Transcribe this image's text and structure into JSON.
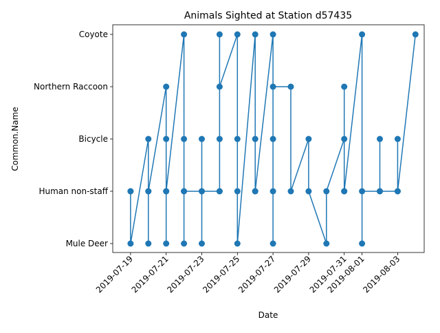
{
  "chart_data": {
    "type": "line",
    "title": "Animals Sighted at Station d57435",
    "xlabel": "Date",
    "ylabel": "Common.Name",
    "categories": [
      "Mule Deer",
      "Human non-staff",
      "Bicycle",
      "Northern Raccoon",
      "Coyote"
    ],
    "x_ticks": [
      "2019-07-19",
      "2019-07-21",
      "2019-07-23",
      "2019-07-25",
      "2019-07-27",
      "2019-07-29",
      "2019-07-31",
      "2019-08-01",
      "2019-08-03"
    ],
    "xlim": [
      "2019-07-18",
      "2019-08-05"
    ],
    "color": "#1f77b4",
    "grid": false,
    "series": [
      {
        "points": [
          [
            "2019-07-19",
            "Human non-staff"
          ],
          [
            "2019-07-19",
            "Human non-staff"
          ],
          [
            "2019-07-19",
            "Mule Deer"
          ],
          [
            "2019-07-20",
            "Bicycle"
          ],
          [
            "2019-07-20",
            "Human non-staff"
          ],
          [
            "2019-07-20",
            "Mule Deer"
          ],
          [
            "2019-07-20",
            "Human non-staff"
          ],
          [
            "2019-07-21",
            "Northern Raccoon"
          ],
          [
            "2019-07-21",
            "Mule Deer"
          ],
          [
            "2019-07-21",
            "Human non-staff"
          ],
          [
            "2019-07-21",
            "Bicycle"
          ],
          [
            "2019-07-21",
            "Human non-staff"
          ],
          [
            "2019-07-22",
            "Coyote"
          ],
          [
            "2019-07-22",
            "Mule Deer"
          ],
          [
            "2019-07-22",
            "Human non-staff"
          ],
          [
            "2019-07-22",
            "Bicycle"
          ],
          [
            "2019-07-22",
            "Human non-staff"
          ],
          [
            "2019-07-23",
            "Human non-staff"
          ],
          [
            "2019-07-23",
            "Mule Deer"
          ],
          [
            "2019-07-23",
            "Bicycle"
          ],
          [
            "2019-07-23",
            "Human non-staff"
          ],
          [
            "2019-07-24",
            "Human non-staff"
          ],
          [
            "2019-07-24",
            "Coyote"
          ],
          [
            "2019-07-24",
            "Human non-staff"
          ],
          [
            "2019-07-24",
            "Bicycle"
          ],
          [
            "2019-07-24",
            "Northern Raccoon"
          ],
          [
            "2019-07-25",
            "Coyote"
          ],
          [
            "2019-07-25",
            "Human non-staff"
          ],
          [
            "2019-07-25",
            "Bicycle"
          ],
          [
            "2019-07-25",
            "Mule Deer"
          ],
          [
            "2019-07-26",
            "Coyote"
          ],
          [
            "2019-07-26",
            "Human non-staff"
          ],
          [
            "2019-07-26",
            "Bicycle"
          ],
          [
            "2019-07-26",
            "Human non-staff"
          ],
          [
            "2019-07-27",
            "Coyote"
          ],
          [
            "2019-07-27",
            "Mule Deer"
          ],
          [
            "2019-07-27",
            "Human non-staff"
          ],
          [
            "2019-07-27",
            "Bicycle"
          ],
          [
            "2019-07-27",
            "Northern Raccoon"
          ],
          [
            "2019-07-28",
            "Northern Raccoon"
          ],
          [
            "2019-07-28",
            "Human non-staff"
          ],
          [
            "2019-07-29",
            "Bicycle"
          ],
          [
            "2019-07-29",
            "Human non-staff"
          ],
          [
            "2019-07-30",
            "Mule Deer"
          ],
          [
            "2019-07-30",
            "Human non-staff"
          ],
          [
            "2019-07-31",
            "Bicycle"
          ],
          [
            "2019-07-31",
            "Human non-staff"
          ],
          [
            "2019-07-31",
            "Northern Raccoon"
          ],
          [
            "2019-07-31",
            "Human non-staff"
          ],
          [
            "2019-08-01",
            "Coyote"
          ],
          [
            "2019-08-01",
            "Mule Deer"
          ],
          [
            "2019-08-01",
            "Human non-staff"
          ],
          [
            "2019-08-02",
            "Human non-staff"
          ],
          [
            "2019-08-02",
            "Bicycle"
          ],
          [
            "2019-08-02",
            "Human non-staff"
          ],
          [
            "2019-08-03",
            "Human non-staff"
          ],
          [
            "2019-08-03",
            "Bicycle"
          ],
          [
            "2019-08-03",
            "Human non-staff"
          ],
          [
            "2019-08-04",
            "Coyote"
          ]
        ]
      }
    ]
  }
}
